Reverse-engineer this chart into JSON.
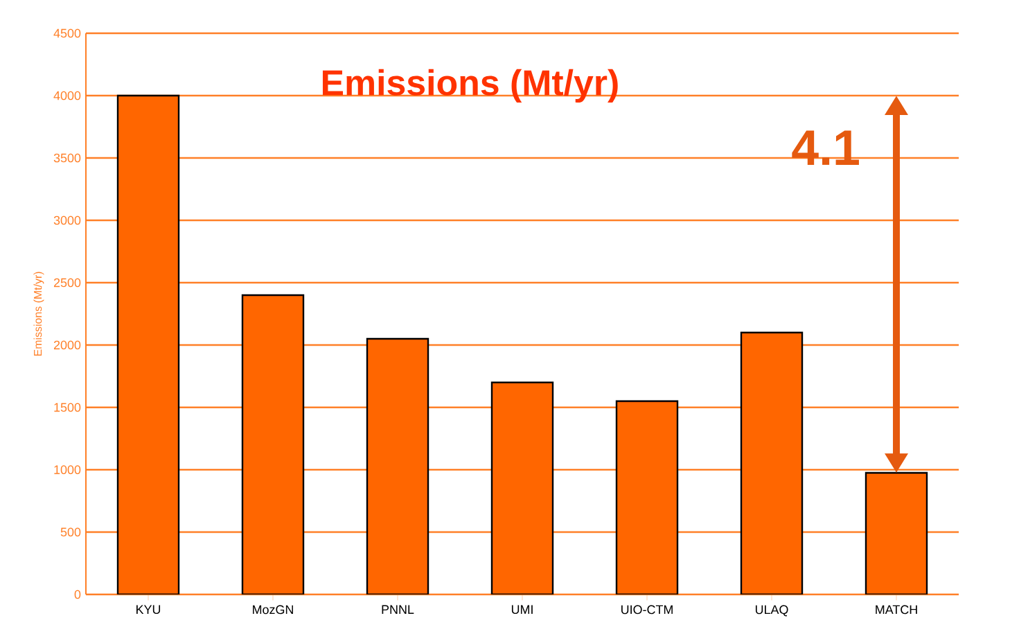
{
  "chart_data": {
    "type": "bar",
    "title": "Emissions (Mt/yr)",
    "ylabel": "Emissions (Mt/yr)",
    "categories": [
      "KYU",
      "MozGN",
      "PNNL",
      "UMI",
      "UIO-CTM",
      "ULAQ",
      "MATCH"
    ],
    "values": [
      4000,
      2400,
      2050,
      1700,
      1550,
      2100,
      975
    ],
    "color": "#ff6600",
    "ylim": [
      0,
      4500
    ],
    "yticks": [
      0,
      500,
      1000,
      1500,
      2000,
      2500,
      3000,
      3500,
      4000,
      4500
    ],
    "grid": "y",
    "annotations": [
      "4.1"
    ]
  }
}
